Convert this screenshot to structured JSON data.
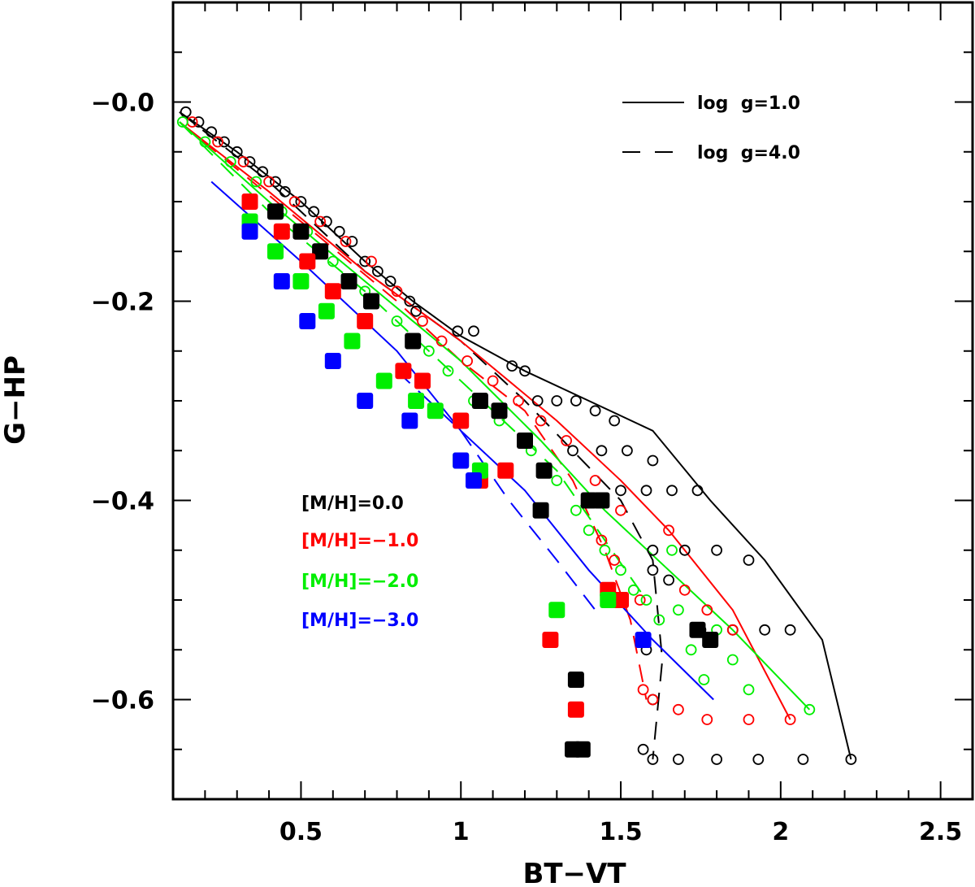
{
  "chart_data": {
    "type": "scatter",
    "xlabel": "BT−VT",
    "ylabel": "G−HP",
    "xlim": [
      0.1,
      2.6
    ],
    "ylim": [
      -0.7,
      0.1
    ],
    "x_ticks": [
      0.5,
      1,
      1.5,
      2,
      2.5
    ],
    "x_tick_labels": [
      "0.5",
      "1",
      "1.5",
      "2",
      "2.5"
    ],
    "y_ticks": [
      0.0,
      -0.2,
      -0.4,
      -0.6
    ],
    "y_tick_labels": [
      "−0.0",
      "−0.2",
      "−0.4",
      "−0.6"
    ],
    "grid": false,
    "line_legend": [
      {
        "label": "log  g=1.0",
        "dash": "solid"
      },
      {
        "label": "log  g=4.0",
        "dash": "dashed"
      }
    ],
    "metallicity_legend": [
      {
        "label": "[M/H]=0.0",
        "color": "#000000"
      },
      {
        "label": "[M/H]=−1.0",
        "color": "#ff0000"
      },
      {
        "label": "[M/H]=−2.0",
        "color": "#00ee00"
      },
      {
        "label": "[M/H]=−3.0",
        "color": "#0000ff"
      }
    ],
    "lines": [
      {
        "metallicity": "0.0",
        "color": "#000000",
        "dash": "solid",
        "points": [
          [
            0.12,
            -0.01
          ],
          [
            0.3,
            -0.05
          ],
          [
            0.5,
            -0.1
          ],
          [
            0.7,
            -0.16
          ],
          [
            0.85,
            -0.2
          ],
          [
            1.0,
            -0.235
          ],
          [
            1.2,
            -0.27
          ],
          [
            1.4,
            -0.3
          ],
          [
            1.6,
            -0.33
          ],
          [
            1.78,
            -0.4
          ],
          [
            1.95,
            -0.46
          ],
          [
            2.13,
            -0.54
          ],
          [
            2.22,
            -0.66
          ]
        ]
      },
      {
        "metallicity": "0.0",
        "color": "#000000",
        "dash": "dashed",
        "points": [
          [
            0.12,
            -0.01
          ],
          [
            0.4,
            -0.08
          ],
          [
            0.7,
            -0.17
          ],
          [
            1.0,
            -0.24
          ],
          [
            1.2,
            -0.3
          ],
          [
            1.35,
            -0.35
          ],
          [
            1.5,
            -0.4
          ],
          [
            1.6,
            -0.46
          ],
          [
            1.63,
            -0.56
          ],
          [
            1.6,
            -0.66
          ]
        ]
      },
      {
        "metallicity": "-1.0",
        "color": "#ff0000",
        "dash": "solid",
        "points": [
          [
            0.12,
            -0.02
          ],
          [
            0.4,
            -0.09
          ],
          [
            0.7,
            -0.17
          ],
          [
            1.0,
            -0.24
          ],
          [
            1.3,
            -0.32
          ],
          [
            1.5,
            -0.38
          ],
          [
            1.65,
            -0.43
          ],
          [
            1.85,
            -0.51
          ],
          [
            2.03,
            -0.62
          ]
        ]
      },
      {
        "metallicity": "-1.0",
        "color": "#ff0000",
        "dash": "dashed",
        "points": [
          [
            0.12,
            -0.02
          ],
          [
            0.5,
            -0.12
          ],
          [
            0.8,
            -0.2
          ],
          [
            1.0,
            -0.26
          ],
          [
            1.2,
            -0.31
          ],
          [
            1.35,
            -0.38
          ],
          [
            1.45,
            -0.45
          ],
          [
            1.53,
            -0.52
          ],
          [
            1.58,
            -0.6
          ]
        ]
      },
      {
        "metallicity": "-2.0",
        "color": "#00ee00",
        "dash": "solid",
        "points": [
          [
            0.12,
            -0.02
          ],
          [
            0.4,
            -0.1
          ],
          [
            0.7,
            -0.18
          ],
          [
            1.0,
            -0.26
          ],
          [
            1.25,
            -0.34
          ],
          [
            1.45,
            -0.41
          ],
          [
            1.65,
            -0.47
          ],
          [
            1.85,
            -0.53
          ],
          [
            2.09,
            -0.61
          ]
        ]
      },
      {
        "metallicity": "-2.0",
        "color": "#00ee00",
        "dash": "dashed",
        "points": [
          [
            0.12,
            -0.02
          ],
          [
            0.4,
            -0.11
          ],
          [
            0.7,
            -0.19
          ],
          [
            0.9,
            -0.25
          ],
          [
            1.1,
            -0.31
          ],
          [
            1.3,
            -0.37
          ],
          [
            1.45,
            -0.44
          ],
          [
            1.58,
            -0.5
          ]
        ]
      },
      {
        "metallicity": "-3.0",
        "color": "#0000ff",
        "dash": "solid",
        "points": [
          [
            0.22,
            -0.08
          ],
          [
            0.5,
            -0.16
          ],
          [
            0.8,
            -0.25
          ],
          [
            1.0,
            -0.33
          ],
          [
            1.2,
            -0.39
          ],
          [
            1.4,
            -0.47
          ],
          [
            1.6,
            -0.54
          ],
          [
            1.79,
            -0.6
          ]
        ]
      },
      {
        "metallicity": "-3.0",
        "color": "#0000ff",
        "dash": "dashed",
        "points": [
          [
            0.8,
            -0.27
          ],
          [
            1.0,
            -0.33
          ],
          [
            1.15,
            -0.4
          ],
          [
            1.3,
            -0.46
          ],
          [
            1.42,
            -0.51
          ]
        ]
      }
    ],
    "open_circles": [
      {
        "metallicity": "0.0",
        "color": "#000000",
        "points": [
          [
            0.14,
            -0.01
          ],
          [
            0.18,
            -0.02
          ],
          [
            0.22,
            -0.03
          ],
          [
            0.26,
            -0.04
          ],
          [
            0.3,
            -0.05
          ],
          [
            0.34,
            -0.06
          ],
          [
            0.38,
            -0.07
          ],
          [
            0.42,
            -0.08
          ],
          [
            0.45,
            -0.09
          ],
          [
            0.5,
            -0.1
          ],
          [
            0.54,
            -0.11
          ],
          [
            0.58,
            -0.12
          ],
          [
            0.62,
            -0.13
          ],
          [
            0.66,
            -0.14
          ],
          [
            0.7,
            -0.16
          ],
          [
            0.74,
            -0.17
          ],
          [
            0.78,
            -0.18
          ],
          [
            0.84,
            -0.2
          ],
          [
            0.86,
            -0.21
          ],
          [
            0.99,
            -0.23
          ],
          [
            1.04,
            -0.23
          ],
          [
            1.16,
            -0.265
          ],
          [
            1.2,
            -0.27
          ],
          [
            1.24,
            -0.3
          ],
          [
            1.3,
            -0.3
          ],
          [
            1.36,
            -0.3
          ],
          [
            1.42,
            -0.31
          ],
          [
            1.48,
            -0.32
          ],
          [
            1.35,
            -0.35
          ],
          [
            1.44,
            -0.35
          ],
          [
            1.52,
            -0.35
          ],
          [
            1.6,
            -0.36
          ],
          [
            1.5,
            -0.39
          ],
          [
            1.58,
            -0.39
          ],
          [
            1.66,
            -0.39
          ],
          [
            1.74,
            -0.39
          ],
          [
            1.6,
            -0.45
          ],
          [
            1.7,
            -0.45
          ],
          [
            1.8,
            -0.45
          ],
          [
            1.9,
            -0.46
          ],
          [
            1.6,
            -0.47
          ],
          [
            1.65,
            -0.48
          ],
          [
            1.75,
            -0.53
          ],
          [
            1.85,
            -0.53
          ],
          [
            1.95,
            -0.53
          ],
          [
            2.03,
            -0.53
          ],
          [
            1.58,
            -0.55
          ],
          [
            1.6,
            -0.6
          ],
          [
            1.57,
            -0.65
          ],
          [
            1.6,
            -0.66
          ],
          [
            1.68,
            -0.66
          ],
          [
            1.8,
            -0.66
          ],
          [
            1.93,
            -0.66
          ],
          [
            2.07,
            -0.66
          ],
          [
            2.22,
            -0.66
          ]
        ]
      },
      {
        "metallicity": "-1.0",
        "color": "#ff0000",
        "points": [
          [
            0.16,
            -0.02
          ],
          [
            0.24,
            -0.04
          ],
          [
            0.32,
            -0.06
          ],
          [
            0.4,
            -0.08
          ],
          [
            0.48,
            -0.1
          ],
          [
            0.56,
            -0.12
          ],
          [
            0.64,
            -0.14
          ],
          [
            0.72,
            -0.16
          ],
          [
            0.8,
            -0.19
          ],
          [
            0.88,
            -0.22
          ],
          [
            0.94,
            -0.24
          ],
          [
            1.02,
            -0.26
          ],
          [
            1.1,
            -0.28
          ],
          [
            1.18,
            -0.3
          ],
          [
            1.25,
            -0.32
          ],
          [
            1.33,
            -0.34
          ],
          [
            1.42,
            -0.38
          ],
          [
            1.5,
            -0.41
          ],
          [
            1.44,
            -0.44
          ],
          [
            1.48,
            -0.46
          ],
          [
            1.56,
            -0.5
          ],
          [
            1.65,
            -0.43
          ],
          [
            1.7,
            -0.49
          ],
          [
            1.77,
            -0.51
          ],
          [
            1.85,
            -0.53
          ],
          [
            1.57,
            -0.59
          ],
          [
            1.6,
            -0.6
          ],
          [
            1.68,
            -0.61
          ],
          [
            1.77,
            -0.62
          ],
          [
            1.9,
            -0.62
          ],
          [
            2.03,
            -0.62
          ]
        ]
      },
      {
        "metallicity": "-2.0",
        "color": "#00ee00",
        "points": [
          [
            0.13,
            -0.02
          ],
          [
            0.2,
            -0.04
          ],
          [
            0.28,
            -0.06
          ],
          [
            0.36,
            -0.08
          ],
          [
            0.44,
            -0.11
          ],
          [
            0.52,
            -0.13
          ],
          [
            0.6,
            -0.16
          ],
          [
            0.7,
            -0.19
          ],
          [
            0.8,
            -0.22
          ],
          [
            0.9,
            -0.25
          ],
          [
            0.96,
            -0.27
          ],
          [
            1.04,
            -0.3
          ],
          [
            1.12,
            -0.32
          ],
          [
            1.22,
            -0.35
          ],
          [
            1.3,
            -0.38
          ],
          [
            1.36,
            -0.41
          ],
          [
            1.4,
            -0.43
          ],
          [
            1.45,
            -0.45
          ],
          [
            1.5,
            -0.47
          ],
          [
            1.54,
            -0.49
          ],
          [
            1.58,
            -0.5
          ],
          [
            1.62,
            -0.52
          ],
          [
            1.66,
            -0.45
          ],
          [
            1.68,
            -0.51
          ],
          [
            1.72,
            -0.55
          ],
          [
            1.76,
            -0.58
          ],
          [
            1.8,
            -0.53
          ],
          [
            1.85,
            -0.56
          ],
          [
            1.9,
            -0.59
          ],
          [
            2.09,
            -0.61
          ]
        ]
      }
    ],
    "filled_squares": [
      {
        "metallicity": "0.0",
        "color": "#000000",
        "points": [
          [
            0.42,
            -0.11
          ],
          [
            0.5,
            -0.13
          ],
          [
            0.56,
            -0.15
          ],
          [
            0.65,
            -0.18
          ],
          [
            0.72,
            -0.2
          ],
          [
            0.85,
            -0.24
          ],
          [
            1.06,
            -0.3
          ],
          [
            1.12,
            -0.31
          ],
          [
            1.2,
            -0.34
          ],
          [
            1.26,
            -0.37
          ],
          [
            1.25,
            -0.41
          ],
          [
            1.4,
            -0.4
          ],
          [
            1.44,
            -0.4
          ],
          [
            1.74,
            -0.53
          ],
          [
            1.78,
            -0.54
          ],
          [
            1.36,
            -0.58
          ],
          [
            1.35,
            -0.65
          ],
          [
            1.38,
            -0.65
          ]
        ]
      },
      {
        "metallicity": "-1.0",
        "color": "#ff0000",
        "points": [
          [
            0.34,
            -0.1
          ],
          [
            0.44,
            -0.13
          ],
          [
            0.52,
            -0.16
          ],
          [
            0.6,
            -0.19
          ],
          [
            0.7,
            -0.22
          ],
          [
            0.82,
            -0.27
          ],
          [
            0.88,
            -0.28
          ],
          [
            1.0,
            -0.32
          ],
          [
            1.06,
            -0.38
          ],
          [
            1.14,
            -0.37
          ],
          [
            1.46,
            -0.49
          ],
          [
            1.5,
            -0.5
          ],
          [
            1.28,
            -0.54
          ],
          [
            1.36,
            -0.61
          ]
        ]
      },
      {
        "metallicity": "-2.0",
        "color": "#00ee00",
        "points": [
          [
            0.34,
            -0.12
          ],
          [
            0.42,
            -0.15
          ],
          [
            0.5,
            -0.18
          ],
          [
            0.58,
            -0.21
          ],
          [
            0.66,
            -0.24
          ],
          [
            0.76,
            -0.28
          ],
          [
            0.86,
            -0.3
          ],
          [
            0.92,
            -0.31
          ],
          [
            1.0,
            -0.36
          ],
          [
            1.06,
            -0.37
          ],
          [
            1.46,
            -0.5
          ],
          [
            1.3,
            -0.51
          ]
        ]
      },
      {
        "metallicity": "-3.0",
        "color": "#0000ff",
        "points": [
          [
            0.34,
            -0.13
          ],
          [
            0.44,
            -0.18
          ],
          [
            0.52,
            -0.22
          ],
          [
            0.6,
            -0.26
          ],
          [
            0.7,
            -0.3
          ],
          [
            0.84,
            -0.32
          ],
          [
            1.0,
            -0.36
          ],
          [
            1.04,
            -0.38
          ],
          [
            1.57,
            -0.54
          ]
        ]
      }
    ]
  }
}
